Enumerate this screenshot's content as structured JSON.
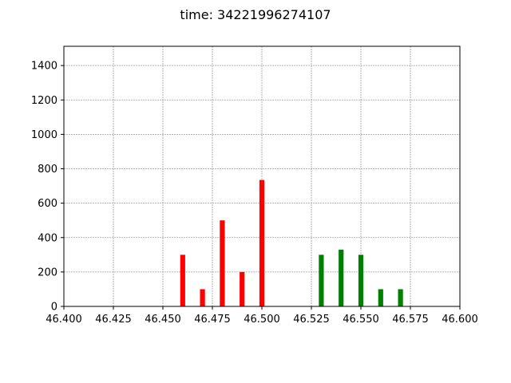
{
  "chart_data": {
    "type": "bar",
    "title": "time: 34221996274107",
    "xlabel": "",
    "ylabel": "",
    "xlim": [
      46.4,
      46.6
    ],
    "ylim": [
      0,
      1512
    ],
    "grid": true,
    "xticks": [
      "46.400",
      "46.425",
      "46.450",
      "46.475",
      "46.500",
      "46.525",
      "46.550",
      "46.575",
      "46.600"
    ],
    "xtick_values": [
      46.4,
      46.425,
      46.45,
      46.475,
      46.5,
      46.525,
      46.55,
      46.575,
      46.6
    ],
    "yticks": [
      "0",
      "200",
      "400",
      "600",
      "800",
      "1000",
      "1200",
      "1400"
    ],
    "ytick_values": [
      0,
      200,
      400,
      600,
      800,
      1000,
      1200,
      1400
    ],
    "bar_width": 0.0025,
    "series": [
      {
        "color": "#ff0000",
        "x": [
          46.46,
          46.47,
          46.48,
          46.49,
          46.5
        ],
        "values": [
          300,
          100,
          500,
          200,
          735
        ]
      },
      {
        "color": "#008000",
        "x": [
          46.53,
          46.54,
          46.55,
          46.56,
          46.57
        ],
        "values": [
          300,
          330,
          300,
          100,
          100
        ]
      }
    ]
  }
}
